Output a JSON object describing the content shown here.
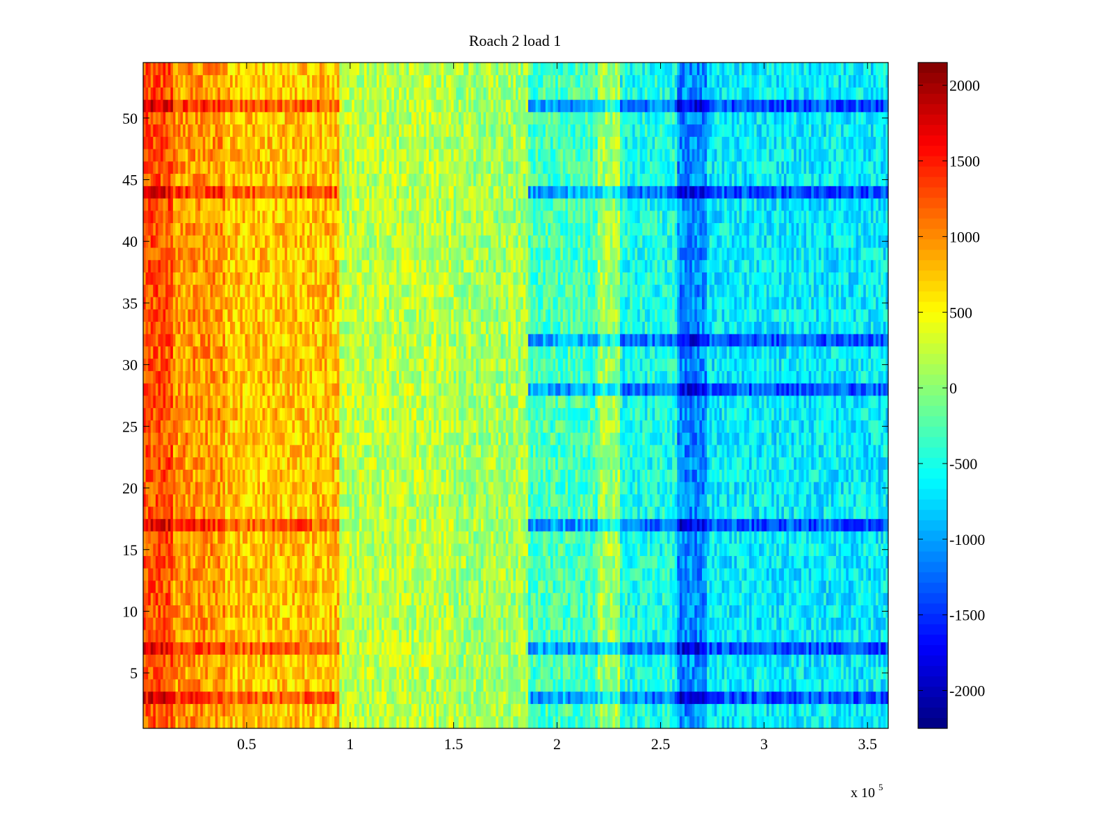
{
  "chart_data": {
    "type": "heatmap",
    "title": "Roach 2 load 1",
    "xlabel": "",
    "ylabel": "",
    "x_multiplier_label": "x 10",
    "x_multiplier_exponent": "5",
    "xlim": [
      0,
      3.6
    ],
    "ylim": [
      0.5,
      54.5
    ],
    "x_ticks": [
      0.5,
      1,
      1.5,
      2,
      2.5,
      3,
      3.5
    ],
    "x_tick_labels": [
      "0.5",
      "1",
      "1.5",
      "2",
      "2.5",
      "3",
      "3.5"
    ],
    "y_ticks": [
      5,
      10,
      15,
      20,
      25,
      30,
      35,
      40,
      45,
      50
    ],
    "y_tick_labels": [
      "5",
      "10",
      "15",
      "20",
      "25",
      "30",
      "35",
      "40",
      "45",
      "50"
    ],
    "rows": 54,
    "colorbar": {
      "colormap": "jet",
      "clim": [
        -2250,
        2150
      ],
      "ticks": [
        2000,
        1500,
        1000,
        500,
        0,
        -500,
        -1000,
        -1500,
        -2000
      ],
      "tick_labels": [
        "2000",
        "1500",
        "1000",
        "500",
        "0",
        "-500",
        "-1000",
        "-1500",
        "-2000"
      ]
    },
    "column_bands": [
      {
        "x_start": 0.0,
        "x_end": 0.15,
        "mean_value": 1250
      },
      {
        "x_start": 0.15,
        "x_end": 0.4,
        "mean_value": 950
      },
      {
        "x_start": 0.4,
        "x_end": 0.95,
        "mean_value": 750
      },
      {
        "x_start": 0.95,
        "x_end": 1.5,
        "mean_value": 200
      },
      {
        "x_start": 1.5,
        "x_end": 1.86,
        "mean_value": 100
      },
      {
        "x_start": 1.86,
        "x_end": 2.2,
        "mean_value": -300
      },
      {
        "x_start": 2.2,
        "x_end": 2.3,
        "mean_value": 100
      },
      {
        "x_start": 2.3,
        "x_end": 2.58,
        "mean_value": -500
      },
      {
        "x_start": 2.58,
        "x_end": 2.73,
        "mean_value": -1100
      },
      {
        "x_start": 2.73,
        "x_end": 3.6,
        "mean_value": -650
      }
    ],
    "low_rows": [
      3,
      7,
      17,
      28,
      32,
      44,
      51
    ],
    "high_rows_left": [
      3,
      7,
      17,
      44,
      51
    ]
  },
  "colors": {
    "axis": "#000000",
    "background": "#ffffff"
  }
}
